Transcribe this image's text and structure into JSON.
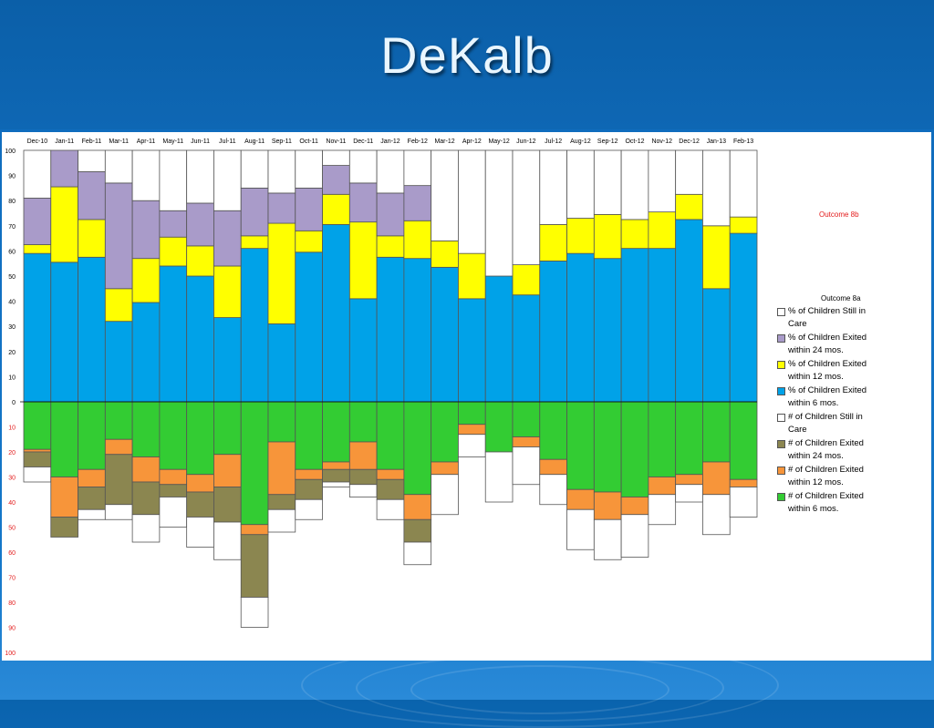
{
  "slide": {
    "title": "DeKalb"
  },
  "chart_data": {
    "type": "bar",
    "stacked": true,
    "categories": [
      "Dec-10",
      "Jan-11",
      "Feb-11",
      "Mar-11",
      "Apr-11",
      "May-11",
      "Jun-11",
      "Jul-11",
      "Aug-11",
      "Sep-11",
      "Oct-11",
      "Nov-11",
      "Dec-11",
      "Jan-12",
      "Feb-12",
      "Mar-12",
      "Apr-12",
      "May-12",
      "Jun-12",
      "Jul-12",
      "Aug-12",
      "Sep-12",
      "Oct-12",
      "Nov-12",
      "Dec-12",
      "Jan-13",
      "Feb-13"
    ],
    "y_ticks_top": [
      "100",
      "90",
      "80",
      "70",
      "60",
      "50",
      "40",
      "30",
      "20",
      "10",
      "0"
    ],
    "y_ticks_bottom": [
      "10",
      "20",
      "30",
      "40",
      "50",
      "60",
      "70",
      "80",
      "90",
      "100"
    ],
    "ylim": [
      -100,
      100
    ],
    "grid": false,
    "legend_position": "right",
    "annotations": {
      "outcome_8b": "Outcome 8b",
      "outcome_8a": "Outcome 8a"
    },
    "colors": {
      "still_in_care": "#ffffff",
      "exited_24": "#a99bc9",
      "exited_12": "#ffff00",
      "exited_6": "#00a2e8",
      "count_still_in_care": "#ffffff",
      "count_24": "#8b8650",
      "count_12": "#f7953a",
      "count_6": "#33cc33"
    },
    "legend": [
      {
        "key": "still_in_care",
        "label": "% of Children Still in Care"
      },
      {
        "key": "exited_24",
        "label": "% of Children Exited within 24 mos."
      },
      {
        "key": "exited_12",
        "label": "% of Children Exited within 12 mos."
      },
      {
        "key": "exited_6",
        "label": "% of Children Exited within 6 mos."
      },
      {
        "key": "count_still_in_care",
        "label": "# of Children Still in Care"
      },
      {
        "key": "count_24",
        "label": "# of Children Exited within 24 mos."
      },
      {
        "key": "count_12",
        "label": "# of Children Exited within 12 mos."
      },
      {
        "key": "count_6",
        "label": "# of Children Exited within 6 mos."
      }
    ],
    "series_top": [
      {
        "key": "exited_6",
        "values": [
          59,
          55.5,
          57.5,
          32,
          39.5,
          54,
          50,
          33.5,
          61,
          31,
          59.5,
          70.5,
          41,
          57.5,
          57,
          53.5,
          41,
          50,
          42.5,
          56,
          59,
          57,
          61,
          61,
          72.5,
          45,
          67
        ]
      },
      {
        "key": "exited_12",
        "values": [
          3.5,
          30,
          15,
          13,
          17.5,
          11.5,
          12,
          20.5,
          5,
          40,
          8.5,
          12,
          30.5,
          8.5,
          15,
          10.5,
          18,
          0,
          12,
          14.5,
          14,
          17.5,
          11.5,
          14.5,
          10,
          25,
          6.5
        ]
      },
      {
        "key": "exited_24",
        "values": [
          18.5,
          14.5,
          19,
          42,
          23,
          10.5,
          17,
          22,
          19,
          12,
          17,
          11.5,
          15.5,
          17,
          14,
          0,
          0,
          0,
          0,
          0,
          0,
          0,
          0,
          0,
          0,
          0,
          0
        ]
      },
      {
        "key": "still_in_care",
        "values": [
          19,
          0,
          8.5,
          13,
          20,
          24,
          21,
          24,
          15,
          17,
          15,
          6,
          13,
          17,
          14,
          36,
          41,
          50,
          45.5,
          29.5,
          27,
          25.5,
          27.5,
          24.5,
          17.5,
          30,
          26.5
        ]
      }
    ],
    "series_bottom": [
      {
        "key": "count_6",
        "values": [
          19,
          30,
          27,
          15,
          22,
          27,
          29,
          21,
          49,
          16,
          27,
          24,
          16,
          27,
          37,
          24,
          9,
          20,
          14,
          23,
          35,
          36,
          38,
          30,
          29,
          24,
          31
        ]
      },
      {
        "key": "count_12",
        "values": [
          1,
          16,
          7,
          6,
          10,
          6,
          7,
          13,
          4,
          21,
          4,
          3,
          11,
          4,
          10,
          5,
          4,
          0,
          4,
          6,
          8,
          11,
          7,
          7,
          4,
          13,
          3
        ]
      },
      {
        "key": "count_24",
        "values": [
          6,
          8,
          9,
          20,
          13,
          5,
          10,
          14,
          25,
          6,
          8,
          5,
          6,
          8,
          9,
          0,
          0,
          0,
          0,
          0,
          0,
          0,
          0,
          0,
          0,
          0,
          0
        ]
      },
      {
        "key": "count_still_in_care",
        "values": [
          6,
          0,
          4,
          6,
          11,
          12,
          12,
          15,
          12,
          9,
          8,
          2,
          5,
          8,
          9,
          16,
          9,
          20,
          15,
          12,
          16,
          16,
          17,
          12,
          7,
          16,
          12
        ]
      }
    ]
  }
}
